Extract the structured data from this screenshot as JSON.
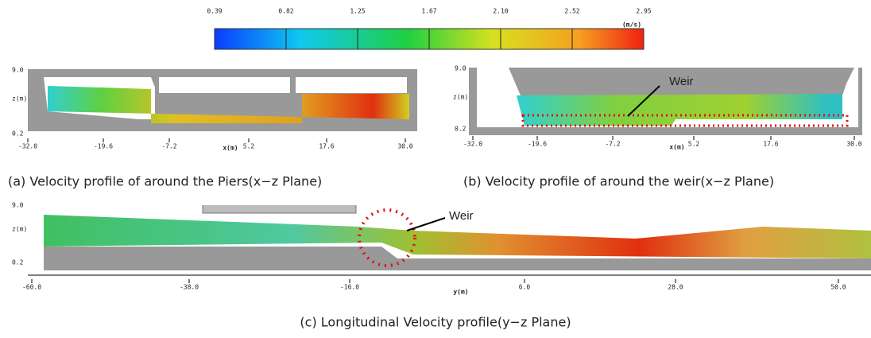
{
  "colorbar": {
    "ticks": [
      "0.39",
      "0.82",
      "1.25",
      "1.67",
      "2.10",
      "2.52",
      "2.95"
    ],
    "unit": "(m/s)"
  },
  "panels": [
    {
      "y_labels": [
        "9.0",
        "z(m)",
        "0.2"
      ],
      "x_ticks": [
        "-32.0",
        "-19.6",
        "-7.2",
        "5.2",
        "17.6",
        "30.0"
      ],
      "x_label": "x(m)",
      "caption": "(a) Velocity profile of around the Piers(x−z Plane)"
    },
    {
      "y_labels": [
        "9.0",
        "z(m)",
        "0.2"
      ],
      "x_ticks": [
        "-32.0",
        "-19.6",
        "-7.2",
        "5.2",
        "17.6",
        "30.0"
      ],
      "x_label": "x(m)",
      "annotation": "Weir",
      "caption": "(b) Velocity profile of around the weir(x−z Plane)"
    },
    {
      "y_labels": [
        "9.0",
        "z(m)",
        "0.2"
      ],
      "x_ticks": [
        "-60.0",
        "-38.0",
        "-16.0",
        "6.0",
        "28.0",
        "50.0"
      ],
      "x_label": "y(m)",
      "annotation": "Weir",
      "caption": "(c) Longitudinal Velocity profile(y−z Plane)"
    }
  ]
}
